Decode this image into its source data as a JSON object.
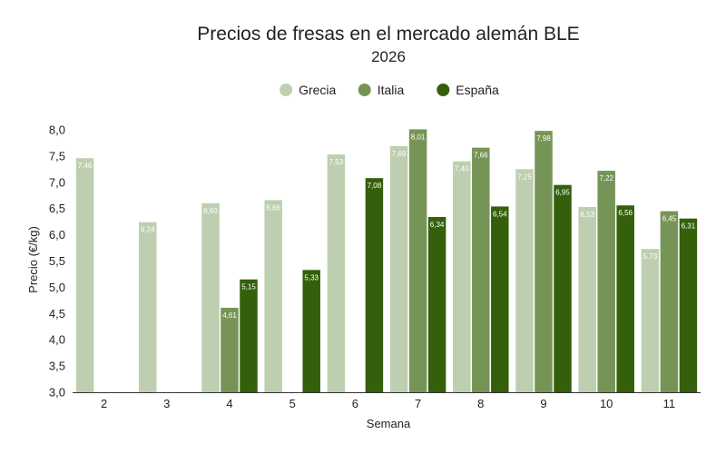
{
  "chart_data": {
    "type": "bar",
    "title": "Precios de fresas en el mercado alemán BLE",
    "subtitle": "2026",
    "xlabel": "Semana",
    "ylabel": "Precio (€/kg)",
    "ylim": [
      3.0,
      8.0
    ],
    "ytick_step": 0.5,
    "ytick_labels": [
      "3,0",
      "3,5",
      "4,0",
      "4,5",
      "5,0",
      "5,5",
      "6,0",
      "6,5",
      "7,0",
      "7,5",
      "8,0"
    ],
    "grid": false,
    "legend_position": "top-center",
    "categories": [
      "2",
      "3",
      "4",
      "5",
      "6",
      "7",
      "8",
      "9",
      "10",
      "11"
    ],
    "series": [
      {
        "name": "Grecia",
        "color": "#bdcfb0",
        "values": [
          7.46,
          6.24,
          6.6,
          6.66,
          7.53,
          7.69,
          7.4,
          7.25,
          6.53,
          5.73
        ],
        "labels": [
          "7,46",
          "6,24",
          "6,60",
          "6,66",
          "7,53",
          "7,69",
          "7,40",
          "7,25",
          "6,53",
          "5,73"
        ]
      },
      {
        "name": "Italia",
        "color": "#779457",
        "values": [
          null,
          null,
          4.61,
          null,
          null,
          8.01,
          7.66,
          7.98,
          7.22,
          6.45
        ],
        "labels": [
          null,
          null,
          "4,61",
          null,
          null,
          "8,01",
          "7,66",
          "7,98",
          "7,22",
          "6,45"
        ]
      },
      {
        "name": "España",
        "color": "#34600b",
        "values": [
          null,
          null,
          5.15,
          5.33,
          7.08,
          6.34,
          6.54,
          6.95,
          6.56,
          6.31
        ],
        "labels": [
          null,
          null,
          "5,15",
          "5,33",
          "7,08",
          "6,34",
          "6,54",
          "6,95",
          "6,56",
          "6,31"
        ]
      }
    ]
  }
}
